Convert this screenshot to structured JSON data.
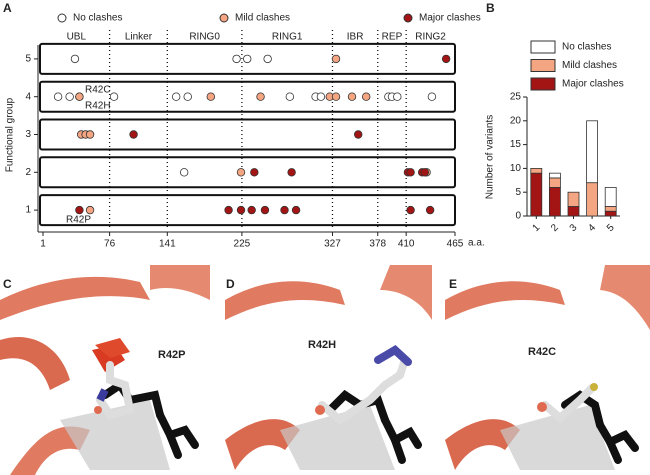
{
  "chart_data": [
    {
      "type": "scatter",
      "panel": "A",
      "ylabel": "Functional group",
      "xlabel": "a.a.",
      "xlim": [
        1,
        465
      ],
      "xticks": [
        1,
        76,
        141,
        225,
        327,
        378,
        410,
        465
      ],
      "ylim": [
        0.5,
        5.5
      ],
      "yticks": [
        1,
        2,
        3,
        4,
        5
      ],
      "domains": [
        {
          "label": "UBL",
          "start": 1,
          "end": 76
        },
        {
          "label": "Linker",
          "start": 76,
          "end": 141
        },
        {
          "label": "RING0",
          "start": 141,
          "end": 225
        },
        {
          "label": "RING1",
          "start": 225,
          "end": 327
        },
        {
          "label": "IBR",
          "start": 327,
          "end": 378
        },
        {
          "label": "REP",
          "start": 378,
          "end": 410
        },
        {
          "label": "RING2",
          "start": 410,
          "end": 465
        }
      ],
      "annotations": [
        "R42C",
        "R42H",
        "R42P"
      ],
      "series": [
        {
          "name": "No clashes",
          "color": "#ffffff",
          "x": [
            37,
            219,
            231,
            254,
            18,
            31,
            42,
            81,
            151,
            164,
            279,
            308,
            314,
            390,
            394,
            400,
            439,
            160
          ],
          "y": [
            5,
            5,
            5,
            5,
            4,
            4,
            4,
            4,
            4,
            4,
            4,
            4,
            4,
            4,
            4,
            4,
            4,
            2
          ]
        },
        {
          "name": "Mild clashes",
          "color": "#f4a582",
          "x": [
            331,
            42,
            190,
            246,
            324,
            331,
            349,
            365,
            44,
            49,
            54,
            224,
            433,
            54
          ],
          "y": [
            5,
            4,
            4,
            4,
            4,
            4,
            4,
            4,
            3,
            3,
            3,
            2,
            2,
            1
          ]
        },
        {
          "name": "Major clashes",
          "color": "#a31515",
          "x": [
            455,
            103,
            356,
            239,
            281,
            412,
            415,
            428,
            431,
            42,
            210,
            224,
            236,
            251,
            273,
            286,
            415,
            437
          ],
          "y": [
            5,
            3,
            3,
            2,
            2,
            2,
            2,
            2,
            2,
            1,
            1,
            1,
            1,
            1,
            1,
            1,
            1,
            1
          ]
        }
      ]
    },
    {
      "type": "bar",
      "panel": "B",
      "ylabel": "Number of variants",
      "categories": [
        "1",
        "2",
        "3",
        "4",
        "5"
      ],
      "ylim": [
        0,
        25
      ],
      "yticks": [
        0,
        5,
        10,
        15,
        20,
        25
      ],
      "series": [
        {
          "name": "No clashes",
          "color": "#ffffff",
          "values": [
            0,
            1,
            0,
            13,
            4
          ]
        },
        {
          "name": "Mild clashes",
          "color": "#f4a582",
          "values": [
            1,
            2,
            3,
            7,
            1
          ]
        },
        {
          "name": "Major clashes",
          "color": "#a31515",
          "values": [
            9,
            6,
            2,
            0,
            1
          ]
        }
      ]
    }
  ],
  "panels": [
    {
      "letter": "C",
      "label": "R42P"
    },
    {
      "letter": "D",
      "label": "R42H"
    },
    {
      "letter": "E",
      "label": "R42C"
    }
  ]
}
